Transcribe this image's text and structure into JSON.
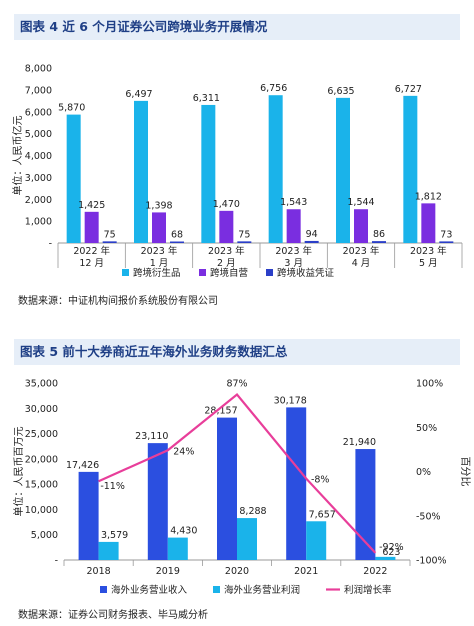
{
  "chart1": {
    "title": "图表 4 近 6 个月证券公司跨境业务开展情况",
    "source": "数据来源：中证机构间报价系统股份有限公司",
    "chart_data": {
      "type": "bar",
      "ylabel": "单位：人民币亿元",
      "ylim": [
        0,
        8000
      ],
      "yticks": [
        "-",
        "1,000",
        "2,000",
        "3,000",
        "4,000",
        "5,000",
        "6,000",
        "7,000",
        "8,000"
      ],
      "categories": [
        [
          "2022 年",
          "12 月"
        ],
        [
          "2023 年",
          "1 月"
        ],
        [
          "2023 年",
          "2 月"
        ],
        [
          "2023 年",
          "3 月"
        ],
        [
          "2023 年",
          "4 月"
        ],
        [
          "2023 年",
          "5 月"
        ]
      ],
      "series": [
        {
          "name": "跨境衍生品",
          "color": "#1ab3ea",
          "values": [
            5870,
            6497,
            6311,
            6756,
            6635,
            6727
          ],
          "labels": [
            "5,870",
            "6,497",
            "6,311",
            "6,756",
            "6,635",
            "6,727"
          ]
        },
        {
          "name": "跨境自营",
          "color": "#7a2ee0",
          "values": [
            1425,
            1398,
            1470,
            1543,
            1544,
            1812
          ],
          "labels": [
            "1,425",
            "1,398",
            "1,470",
            "1,543",
            "1,544",
            "1,812"
          ]
        },
        {
          "name": "跨境收益凭证",
          "color": "#2b3fc8",
          "values": [
            75,
            68,
            75,
            94,
            86,
            73
          ],
          "labels": [
            "75",
            "68",
            "75",
            "94",
            "86",
            "73"
          ]
        }
      ],
      "legend": "bottom"
    }
  },
  "chart2": {
    "title": "图表 5 前十大券商近五年海外业务财务数据汇总",
    "source": "数据来源：证券公司财务报表、毕马威分析",
    "chart_data": {
      "type": "bar",
      "ylabel": "单位：人民币百万元",
      "y2label": "百分比",
      "ylim": [
        0,
        35000
      ],
      "yticks": [
        "-",
        "5,000",
        "10,000",
        "15,000",
        "20,000",
        "25,000",
        "30,000",
        "35,000"
      ],
      "y2lim": [
        -100,
        100
      ],
      "y2ticks": [
        "-100%",
        "-50%",
        "0%",
        "50%",
        "100%"
      ],
      "categories": [
        "2018",
        "2019",
        "2020",
        "2021",
        "2022"
      ],
      "series": [
        {
          "name": "海外业务营业收入",
          "color": "#2b4fe0",
          "values": [
            17426,
            23110,
            28157,
            30178,
            21940
          ],
          "labels": [
            "17,426",
            "23,110",
            "28,157",
            "30,178",
            "21,940"
          ]
        },
        {
          "name": "海外业务营业利润",
          "color": "#1ab3ea",
          "values": [
            3579,
            4430,
            8288,
            7657,
            623
          ],
          "labels": [
            "3,579",
            "4,430",
            "8,288",
            "7,657",
            "623"
          ]
        }
      ],
      "line": {
        "name": "利润增长率",
        "color": "#e83e9a",
        "values": [
          -11,
          24,
          87,
          -8,
          -92
        ],
        "labels": [
          "-11%",
          "24%",
          "87%",
          "-8%",
          "-92%"
        ]
      },
      "legend": "bottom"
    }
  }
}
